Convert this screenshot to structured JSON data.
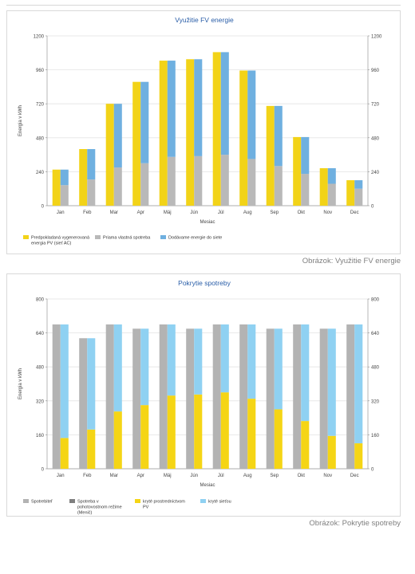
{
  "chart_data": [
    {
      "type": "bar",
      "title": "Využitie FV energie",
      "xlabel": "Mesiac",
      "ylabel": "Energia v kWh",
      "ylim": [
        0,
        1200
      ],
      "yticks": [
        0,
        240,
        480,
        720,
        960,
        1200
      ],
      "categories": [
        "Jan",
        "Feb",
        "Mar",
        "Apr",
        "Máj",
        "Jún",
        "Júl",
        "Aug",
        "Sep",
        "Okt",
        "Nov",
        "Dec"
      ],
      "grid": true,
      "legend_position": "bottom-left",
      "series": [
        {
          "name": "Predpokladaná vygenerovaná energia PV  (sieť AC)",
          "group": "left",
          "color": "#f2d318",
          "values": [
            255,
            400,
            720,
            875,
            1025,
            1035,
            1085,
            955,
            705,
            485,
            265,
            180
          ]
        },
        {
          "name": "Priama vlastná spotreba",
          "group": "right",
          "color": "#b9b9b9",
          "values": [
            145,
            185,
            270,
            300,
            345,
            350,
            360,
            330,
            280,
            225,
            155,
            120
          ]
        },
        {
          "name": "Dodávame energie do siete",
          "group": "right",
          "stack_on": "Priama vlastná spotreba",
          "color": "#6fb0e0",
          "values": [
            110,
            215,
            450,
            575,
            680,
            685,
            725,
            625,
            425,
            260,
            110,
            60
          ]
        }
      ],
      "caption": "Obrázok: Využitie FV energie"
    },
    {
      "type": "bar",
      "title": "Pokrytie spotreby",
      "xlabel": "Mesiac",
      "ylabel": "Energia v kWh",
      "ylim": [
        0,
        800
      ],
      "yticks": [
        0,
        160,
        320,
        480,
        640,
        800
      ],
      "categories": [
        "Jan",
        "Feb",
        "Mar",
        "Apr",
        "Máj",
        "Jún",
        "Júl",
        "Aug",
        "Sep",
        "Okt",
        "Nov",
        "Dec"
      ],
      "grid": true,
      "legend_position": "bottom-left",
      "series": [
        {
          "name": "Spotrebiteľ",
          "group": "left",
          "color": "#b3b3b3",
          "values": [
            680,
            615,
            680,
            660,
            680,
            660,
            680,
            680,
            660,
            680,
            660,
            680
          ]
        },
        {
          "name": "Spotreba v pohotovostnom režime (Menič)",
          "group": "left",
          "stack_on": "Spotrebiteľ",
          "color": "#7f7f7f",
          "values": [
            0,
            0,
            0,
            0,
            0,
            0,
            0,
            0,
            0,
            0,
            0,
            0
          ]
        },
        {
          "name": "kryté prostredníctvom PV",
          "group": "right",
          "color": "#f5d515",
          "values": [
            145,
            185,
            270,
            300,
            345,
            350,
            360,
            330,
            280,
            225,
            155,
            120
          ]
        },
        {
          "name": "kryté sieťou",
          "group": "right",
          "stack_on": "kryté prostredníctvom PV",
          "color": "#8fd1f2",
          "values": [
            535,
            430,
            410,
            360,
            335,
            310,
            320,
            350,
            380,
            455,
            505,
            560
          ]
        }
      ],
      "caption": "Obrázok: Pokrytie spotreby"
    }
  ]
}
